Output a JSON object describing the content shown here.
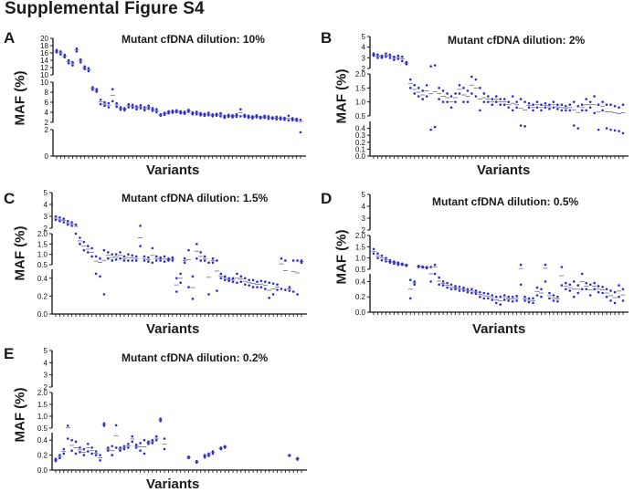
{
  "figure_title": "Supplemental Figure S4",
  "colors": {
    "point": "#2b2bd6",
    "mean": "#6e6e6e",
    "axis": "#111111"
  },
  "chart_data": [
    {
      "panel": "A",
      "type": "scatter",
      "title": "Mutant cfDNA dilution: 10%",
      "ylabel": "MAF (%)",
      "xlabel": "Variants",
      "y_segments": [
        {
          "range": [
            0,
            2
          ],
          "ticks": [
            "0",
            "2"
          ]
        },
        {
          "range": [
            2,
            10
          ],
          "ticks": [
            "2",
            "4",
            "6",
            "8",
            "10"
          ]
        },
        {
          "range": [
            10,
            20
          ],
          "ticks": [
            "10",
            "12",
            "14",
            "16",
            "18",
            "20"
          ]
        }
      ],
      "n_variants": 62,
      "values": [
        [
          16.8,
          16.2
        ],
        [
          16.4,
          15.6
        ],
        [
          15.5,
          14.8
        ],
        [
          14.0,
          13.2
        ],
        [
          13.5,
          12.6
        ],
        [
          17.2,
          16.4
        ],
        [
          14.2,
          13.4
        ],
        [
          12.3,
          11.6
        ],
        [
          11.8,
          11.0
        ],
        [
          9.0,
          8.5
        ],
        [
          8.6,
          8.1
        ],
        [
          6.5,
          5.6
        ],
        [
          6.0,
          5.3
        ],
        [
          5.8,
          5.0
        ],
        [
          8.6,
          6.2
        ],
        [
          5.8,
          5.1
        ],
        [
          5.0,
          4.5
        ],
        [
          4.8,
          4.4
        ],
        [
          5.6,
          5.0
        ],
        [
          5.5,
          4.9
        ],
        [
          5.2,
          4.6
        ],
        [
          5.4,
          4.8
        ],
        [
          5.0,
          4.4
        ],
        [
          5.3,
          4.7
        ],
        [
          4.8,
          4.3
        ],
        [
          4.6,
          4.0
        ],
        [
          3.6,
          3.3
        ],
        [
          3.9,
          3.5
        ],
        [
          4.2,
          3.8
        ],
        [
          4.3,
          3.9
        ],
        [
          4.4,
          4.0
        ],
        [
          4.2,
          3.8
        ],
        [
          4.1,
          3.7
        ],
        [
          4.5,
          4.1
        ],
        [
          4.0,
          3.6
        ],
        [
          4.1,
          3.6
        ],
        [
          3.8,
          3.4
        ],
        [
          3.7,
          3.3
        ],
        [
          3.9,
          3.4
        ],
        [
          3.6,
          3.2
        ],
        [
          3.7,
          3.3
        ],
        [
          3.8,
          3.2
        ],
        [
          3.3,
          2.9
        ],
        [
          3.5,
          3.1
        ],
        [
          3.4,
          3.0
        ],
        [
          3.6,
          3.1
        ],
        [
          4.6,
          3.2
        ],
        [
          3.5,
          3.1
        ],
        [
          3.3,
          2.9
        ],
        [
          3.2,
          2.8
        ],
        [
          3.4,
          3.0
        ],
        [
          3.1,
          2.8
        ],
        [
          3.3,
          2.9
        ],
        [
          3.2,
          2.7
        ],
        [
          3.0,
          2.7
        ],
        [
          3.1,
          2.6
        ],
        [
          3.0,
          2.6
        ],
        [
          2.9,
          2.5
        ],
        [
          3.3,
          2.4
        ],
        [
          2.8,
          2.4
        ],
        [
          2.7,
          2.3
        ],
        [
          2.5,
          1.8
        ]
      ]
    },
    {
      "panel": "B",
      "type": "scatter",
      "title": "Mutant cfDNA dilution: 2%",
      "ylabel": "MAF (%)",
      "xlabel": "Variants",
      "y_segments": [
        {
          "range": [
            0,
            0.5
          ],
          "ticks": [
            "0.0",
            "0.1",
            "0.2",
            "0.3",
            "0.4"
          ]
        },
        {
          "range": [
            0.5,
            2
          ],
          "ticks": [
            "0.5",
            "1.0",
            "1.5",
            "2.0"
          ]
        },
        {
          "range": [
            2,
            5
          ],
          "ticks": [
            "2",
            "3",
            "4",
            "5"
          ]
        }
      ],
      "n_variants": 62,
      "values": [
        [
          3.4,
          3.2
        ],
        [
          3.3,
          3.0
        ],
        [
          3.2,
          3.0
        ],
        [
          3.4,
          3.1
        ],
        [
          3.3,
          3.0
        ],
        [
          3.1,
          2.8
        ],
        [
          3.2,
          2.9
        ],
        [
          3.1,
          2.7
        ],
        [
          2.6,
          2.4
        ],
        [
          1.8,
          1.5
        ],
        [
          1.6,
          1.3
        ],
        [
          1.5,
          1.2
        ],
        [
          1.4,
          1.1
        ],
        [
          1.6,
          1.2
        ],
        [
          2.2,
          0.38
        ],
        [
          2.3,
          0.42
        ],
        [
          1.5,
          1.1
        ],
        [
          1.4,
          1.0
        ],
        [
          1.3,
          1.0
        ],
        [
          1.2,
          0.8
        ],
        [
          1.3,
          1.0
        ],
        [
          1.6,
          1.3
        ],
        [
          1.5,
          1.0
        ],
        [
          1.4,
          1.0
        ],
        [
          1.9,
          1.3
        ],
        [
          1.8,
          1.2
        ],
        [
          1.5,
          0.7
        ],
        [
          1.3,
          1.0
        ],
        [
          1.2,
          1.0
        ],
        [
          1.1,
          0.9
        ],
        [
          1.2,
          1.0
        ],
        [
          1.1,
          0.9
        ],
        [
          1.1,
          0.9
        ],
        [
          1.0,
          0.8
        ],
        [
          1.2,
          0.7
        ],
        [
          1.0,
          0.8
        ],
        [
          1.1,
          0.44
        ],
        [
          1.0,
          0.43
        ],
        [
          0.95,
          0.8
        ],
        [
          0.9,
          0.7
        ],
        [
          1.0,
          0.8
        ],
        [
          0.9,
          0.7
        ],
        [
          0.95,
          0.8
        ],
        [
          0.9,
          0.75
        ],
        [
          1.0,
          0.8
        ],
        [
          0.9,
          0.75
        ],
        [
          0.9,
          0.7
        ],
        [
          0.85,
          0.7
        ],
        [
          0.9,
          0.7
        ],
        [
          1.0,
          0.44
        ],
        [
          0.85,
          0.4
        ],
        [
          0.9,
          0.7
        ],
        [
          1.1,
          0.7
        ],
        [
          1.0,
          0.8
        ],
        [
          1.2,
          0.6
        ],
        [
          0.9,
          0.38
        ],
        [
          1.0,
          0.7
        ],
        [
          0.9,
          0.4
        ],
        [
          0.9,
          0.38
        ],
        [
          0.85,
          0.37
        ],
        [
          0.8,
          0.36
        ],
        [
          0.9,
          0.33
        ]
      ]
    },
    {
      "panel": "C",
      "type": "scatter",
      "title": "Mutant cfDNA dilution: 1.5%",
      "ylabel": "MAF (%)",
      "xlabel": "Variants",
      "y_segments": [
        {
          "range": [
            0,
            0.5
          ],
          "ticks": [
            "0.0",
            "0.2",
            "0.4"
          ]
        },
        {
          "range": [
            0.5,
            2
          ],
          "ticks": [
            "0.5",
            "1.0",
            "1.5",
            "2.0"
          ]
        },
        {
          "range": [
            2,
            5
          ],
          "ticks": [
            "2",
            "3",
            "4",
            "5"
          ]
        }
      ],
      "n_variants": 62,
      "values": [
        [
          3.0,
          2.7
        ],
        [
          2.9,
          2.6
        ],
        [
          2.8,
          2.5
        ],
        [
          2.6,
          2.3
        ],
        [
          2.5,
          2.2
        ],
        [
          2.3,
          2.0
        ],
        [
          1.8,
          1.5
        ],
        [
          1.6,
          1.2
        ],
        [
          1.4,
          1.1
        ],
        [
          1.3,
          0.9
        ],
        [
          0.9,
          0.45
        ],
        [
          0.8,
          0.42
        ],
        [
          1.2,
          0.22
        ],
        [
          1.1,
          0.8
        ],
        [
          1.0,
          0.7
        ],
        [
          1.0,
          0.75
        ],
        [
          1.1,
          0.8
        ],
        [
          0.9,
          0.7
        ],
        [
          1.0,
          0.7
        ],
        [
          0.95,
          0.7
        ],
        [
          0.9,
          0.7
        ],
        [
          2.2,
          1.4
        ],
        [
          0.9,
          0.7
        ],
        [
          0.85,
          0.65
        ],
        [
          1.3,
          0.6
        ],
        [
          0.9,
          0.7
        ],
        [
          0.85,
          0.7
        ],
        [
          0.9,
          0.65
        ],
        [
          0.8,
          0.7
        ],
        [
          0.85,
          0.7
        ],
        [
          0.4,
          0.25
        ],
        [
          0.45,
          0.35
        ],
        [
          0.8,
          0.6
        ],
        [
          1.2,
          0.3
        ],
        [
          0.42,
          0.17
        ],
        [
          1.5,
          0.8
        ],
        [
          1.1,
          0.7
        ],
        [
          0.9,
          0.7
        ],
        [
          0.6,
          0.22
        ],
        [
          0.8,
          0.6
        ],
        [
          0.7,
          0.26
        ],
        [
          0.45,
          0.4
        ],
        [
          0.42,
          0.38
        ],
        [
          0.4,
          0.37
        ],
        [
          0.4,
          0.36
        ],
        [
          0.45,
          0.35
        ],
        [
          0.42,
          0.36
        ],
        [
          0.4,
          0.33
        ],
        [
          0.38,
          0.32
        ],
        [
          0.38,
          0.3
        ],
        [
          0.36,
          0.3
        ],
        [
          0.37,
          0.3
        ],
        [
          0.36,
          0.28
        ],
        [
          0.35,
          0.18
        ],
        [
          0.34,
          0.22
        ],
        [
          0.33,
          0.27
        ],
        [
          0.8,
          0.28
        ],
        [
          0.7,
          0.27
        ],
        [
          0.3,
          0.26
        ],
        [
          0.7,
          0.25
        ],
        [
          0.7,
          0.22
        ],
        [
          0.7,
          0.6
        ]
      ]
    },
    {
      "panel": "D",
      "type": "scatter",
      "title": "Mutant cfDNA dilution: 0.5%",
      "ylabel": "MAF (%)",
      "xlabel": "Variants",
      "y_segments": [
        {
          "range": [
            0,
            0.5
          ],
          "ticks": [
            "0.0",
            "0.2",
            "0.4"
          ]
        },
        {
          "range": [
            0.5,
            2
          ],
          "ticks": [
            "0.5",
            "1.0",
            "1.5",
            "2.0"
          ]
        },
        {
          "range": [
            2,
            5
          ],
          "ticks": [
            "2",
            "3",
            "4",
            "5"
          ]
        }
      ],
      "n_variants": 62,
      "values": [
        [
          1.4,
          1.2
        ],
        [
          1.2,
          1.0
        ],
        [
          1.1,
          0.9
        ],
        [
          1.0,
          0.85
        ],
        [
          0.9,
          0.8
        ],
        [
          0.85,
          0.75
        ],
        [
          0.8,
          0.7
        ],
        [
          0.75,
          0.7
        ],
        [
          0.7,
          0.65
        ],
        [
          0.42,
          0.18
        ],
        [
          0.4,
          0.36
        ],
        [
          0.65,
          0.6
        ],
        [
          0.62,
          0.58
        ],
        [
          0.6,
          0.55
        ],
        [
          0.6,
          0.4
        ],
        [
          0.7,
          0.5
        ],
        [
          0.45,
          0.36
        ],
        [
          0.4,
          0.35
        ],
        [
          0.38,
          0.32
        ],
        [
          0.36,
          0.3
        ],
        [
          0.34,
          0.3
        ],
        [
          0.33,
          0.28
        ],
        [
          0.32,
          0.28
        ],
        [
          0.3,
          0.26
        ],
        [
          0.3,
          0.25
        ],
        [
          0.28,
          0.24
        ],
        [
          0.26,
          0.2
        ],
        [
          0.25,
          0.18
        ],
        [
          0.24,
          0.18
        ],
        [
          0.22,
          0.16
        ],
        [
          0.2,
          0.12
        ],
        [
          0.2,
          0.1
        ],
        [
          0.22,
          0.16
        ],
        [
          0.2,
          0.15
        ],
        [
          0.2,
          0.14
        ],
        [
          0.21,
          0.15
        ],
        [
          0.7,
          0.36
        ],
        [
          0.2,
          0.15
        ],
        [
          0.18,
          0.13
        ],
        [
          0.18,
          0.12
        ],
        [
          0.32,
          0.22
        ],
        [
          0.3,
          0.2
        ],
        [
          0.7,
          0.4
        ],
        [
          0.25,
          0.18
        ],
        [
          0.22,
          0.15
        ],
        [
          0.2,
          0.14
        ],
        [
          0.6,
          0.35
        ],
        [
          0.38,
          0.3
        ],
        [
          0.36,
          0.28
        ],
        [
          0.4,
          0.2
        ],
        [
          0.35,
          0.25
        ],
        [
          0.5,
          0.3
        ],
        [
          0.38,
          0.3
        ],
        [
          0.36,
          0.22
        ],
        [
          0.38,
          0.3
        ],
        [
          0.34,
          0.26
        ],
        [
          0.33,
          0.25
        ],
        [
          0.3,
          0.2
        ],
        [
          0.28,
          0.15
        ],
        [
          0.26,
          0.12
        ],
        [
          0.35,
          0.2
        ],
        [
          0.3,
          0.15
        ]
      ]
    },
    {
      "panel": "E",
      "type": "scatter",
      "title": "Mutant cfDNA dilution: 0.2%",
      "ylabel": "MAF (%)",
      "xlabel": "Variants",
      "y_segments": [
        {
          "range": [
            0,
            0.5
          ],
          "ticks": [
            "0.0",
            "0.2",
            "0.4"
          ]
        },
        {
          "range": [
            0.5,
            2
          ],
          "ticks": [
            "0.5",
            "1.0",
            "1.5",
            "2.0"
          ]
        },
        {
          "range": [
            2,
            5
          ],
          "ticks": [
            "2",
            "3",
            "4",
            "5"
          ]
        }
      ],
      "n_variants": 62,
      "values": [
        [
          0.15,
          0.12
        ],
        [
          0.2,
          0.16
        ],
        [
          0.28,
          0.22
        ],
        [
          0.6,
          0.42
        ],
        [
          0.4,
          0.26
        ],
        [
          0.38,
          0.22
        ],
        [
          0.3,
          0.24
        ],
        [
          0.28,
          0.2
        ],
        [
          0.35,
          0.25
        ],
        [
          0.3,
          0.22
        ],
        [
          0.25,
          0.2
        ],
        [
          0.2,
          0.13
        ],
        [
          0.7,
          0.6
        ],
        [
          0.3,
          0.26
        ],
        [
          0.32,
          0.2
        ],
        [
          0.62,
          0.3
        ],
        [
          0.3,
          0.26
        ],
        [
          0.32,
          0.28
        ],
        [
          0.35,
          0.3
        ],
        [
          0.45,
          0.38
        ],
        [
          0.34,
          0.3
        ],
        [
          0.36,
          0.26
        ],
        [
          0.4,
          0.22
        ],
        [
          0.38,
          0.35
        ],
        [
          0.4,
          0.36
        ],
        [
          0.45,
          0.4
        ],
        [
          0.9,
          0.8
        ],
        [
          0.42,
          0.28
        ],
        null,
        null,
        null,
        null,
        null,
        [
          0.18,
          0.16
        ],
        null,
        [
          0.12,
          0.1
        ],
        null,
        [
          0.2,
          0.17
        ],
        [
          0.22,
          0.19
        ],
        [
          0.25,
          0.22
        ],
        null,
        [
          0.3,
          0.28
        ],
        [
          0.32,
          0.3
        ],
        null,
        null,
        null,
        null,
        null,
        null,
        null,
        null,
        null,
        null,
        null,
        null,
        null,
        null,
        null,
        [
          0.2,
          0.19
        ],
        null,
        [
          0.16,
          0.14
        ],
        null
      ]
    }
  ]
}
